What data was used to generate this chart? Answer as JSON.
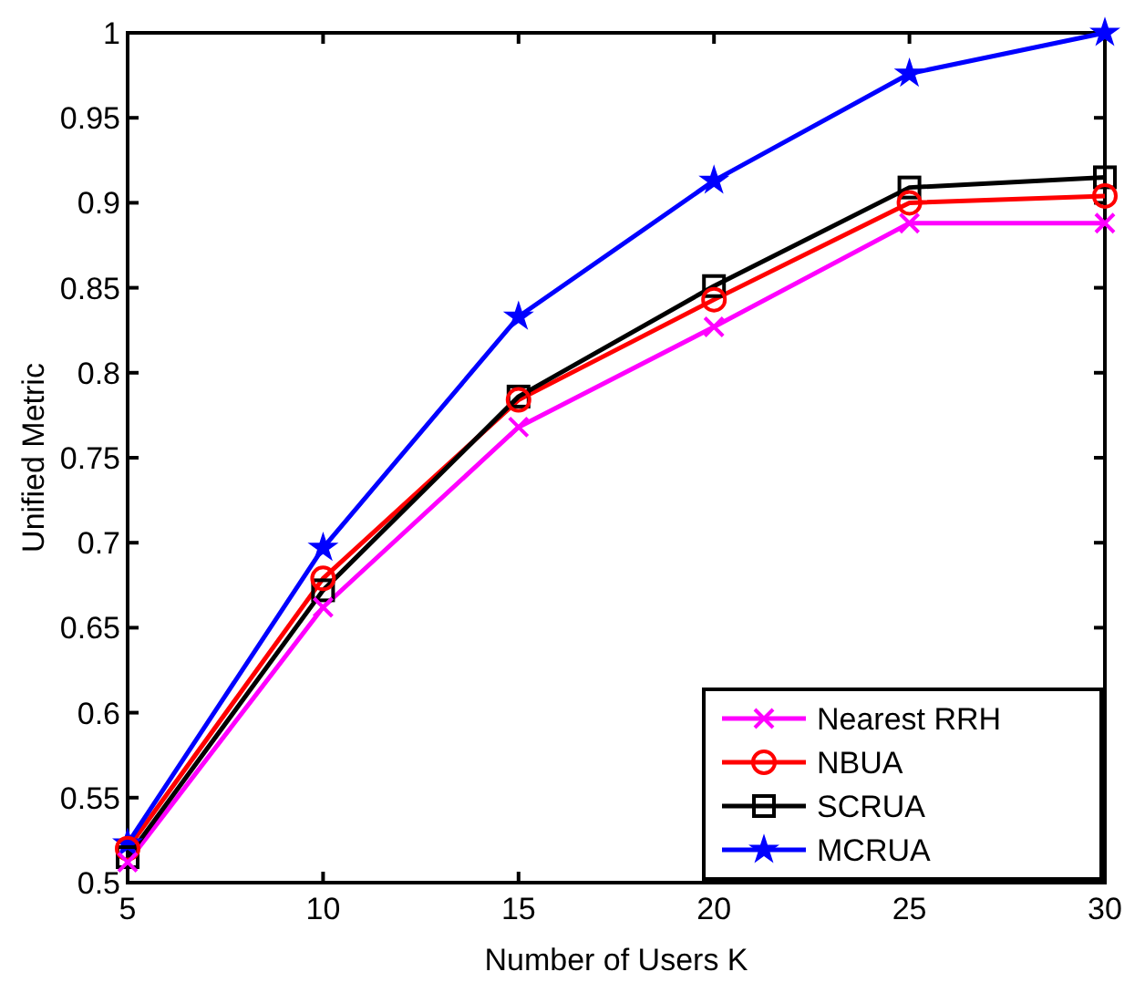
{
  "chart_data": {
    "type": "line",
    "xlabel": "Number of Users  K",
    "ylabel": "Unified Metric",
    "x": [
      5,
      10,
      15,
      20,
      25,
      30
    ],
    "series": [
      {
        "name": "Nearest RRH",
        "color": "#ff00ff",
        "marker": "cross",
        "values": [
          0.512,
          0.662,
          0.768,
          0.827,
          0.888,
          0.888
        ]
      },
      {
        "name": "NBUA",
        "color": "#ff0000",
        "marker": "circle",
        "values": [
          0.52,
          0.679,
          0.784,
          0.843,
          0.9,
          0.904
        ]
      },
      {
        "name": "SCRUA",
        "color": "#000000",
        "marker": "square",
        "values": [
          0.515,
          0.672,
          0.786,
          0.851,
          0.909,
          0.915
        ]
      },
      {
        "name": "MCRUA",
        "color": "#0000ff",
        "marker": "star",
        "values": [
          0.523,
          0.697,
          0.833,
          0.913,
          0.976,
          1.0
        ]
      }
    ],
    "xlim": [
      5,
      30
    ],
    "xticks": [
      5,
      10,
      15,
      20,
      25,
      30
    ],
    "ylim": [
      0.5,
      1
    ],
    "yticks": [
      0.5,
      0.55,
      0.6,
      0.65,
      0.7,
      0.75,
      0.8,
      0.85,
      0.9,
      0.95,
      1
    ],
    "grid": false,
    "legend": "bottom right",
    "line_style": "solid"
  }
}
